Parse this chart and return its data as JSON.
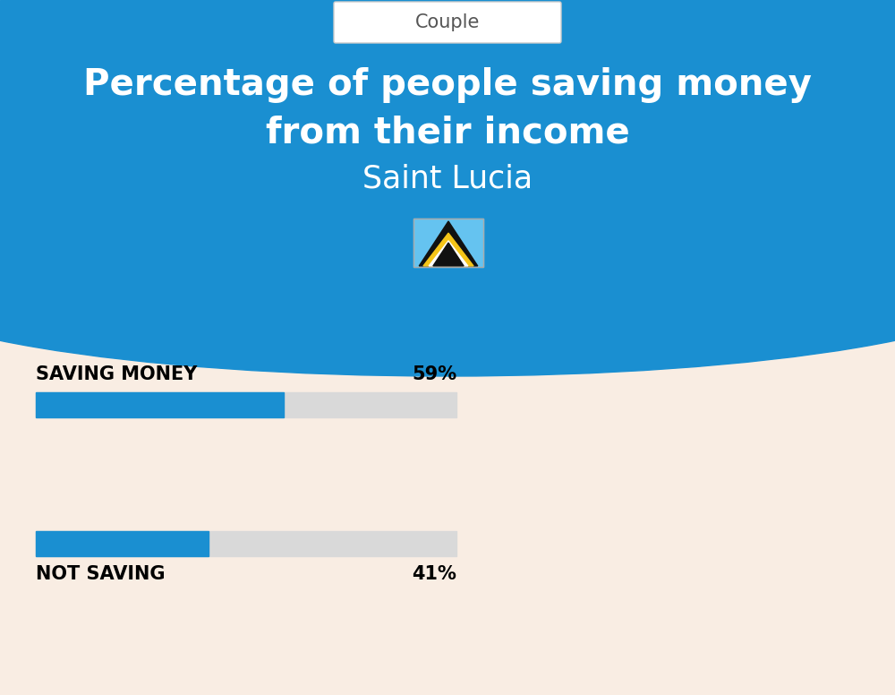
{
  "title_line1": "Percentage of people saving money",
  "title_line2": "from their income",
  "subtitle": "Saint Lucia",
  "category_label": "Couple",
  "bar1_label": "SAVING MONEY",
  "bar1_value": 59,
  "bar1_pct": "59%",
  "bar2_label": "NOT SAVING",
  "bar2_value": 41,
  "bar2_pct": "41%",
  "bg_color": "#f9ede3",
  "header_bg_color": "#1a8fd1",
  "bar_filled_color": "#1a8fd1",
  "bar_empty_color": "#d9d9d9",
  "title_color": "#ffffff",
  "subtitle_color": "#ffffff",
  "label_color": "#000000",
  "pct_color": "#000000",
  "category_text_color": "#555555",
  "figwidth": 10.0,
  "figheight": 7.76
}
